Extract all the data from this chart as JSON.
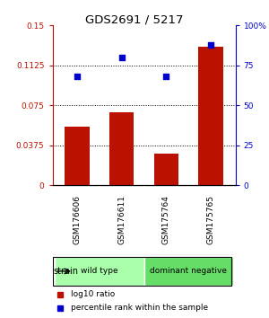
{
  "title": "GDS2691 / 5217",
  "samples": [
    "GSM176606",
    "GSM176611",
    "GSM175764",
    "GSM175765"
  ],
  "bar_values": [
    0.055,
    0.068,
    0.03,
    0.13
  ],
  "scatter_values": [
    68,
    80,
    68,
    88
  ],
  "bar_color": "#bb1100",
  "scatter_color": "#0000cc",
  "ylim_left": [
    0,
    0.15
  ],
  "ylim_right": [
    0,
    100
  ],
  "yticks_left": [
    0,
    0.0375,
    0.075,
    0.1125,
    0.15
  ],
  "ytick_labels_left": [
    "0",
    "0.0375",
    "0.075",
    "0.1125",
    "0.15"
  ],
  "yticks_right": [
    0,
    25,
    50,
    75,
    100
  ],
  "ytick_labels_right": [
    "0",
    "25",
    "50",
    "75",
    "100%"
  ],
  "groups": [
    {
      "label": "wild type",
      "color": "#aaffaa",
      "samples": [
        0,
        1
      ]
    },
    {
      "label": "dominant negative",
      "color": "#66dd66",
      "samples": [
        2,
        3
      ]
    }
  ],
  "strain_label": "strain",
  "legend_items": [
    {
      "color": "#bb1100",
      "label": "log10 ratio"
    },
    {
      "color": "#0000cc",
      "label": "percentile rank within the sample"
    }
  ],
  "sample_box_color": "#cccccc",
  "background_color": "#ffffff",
  "grid_color": "#000000",
  "grid_linestyle": "dotted",
  "grid_linewidth": 0.7
}
